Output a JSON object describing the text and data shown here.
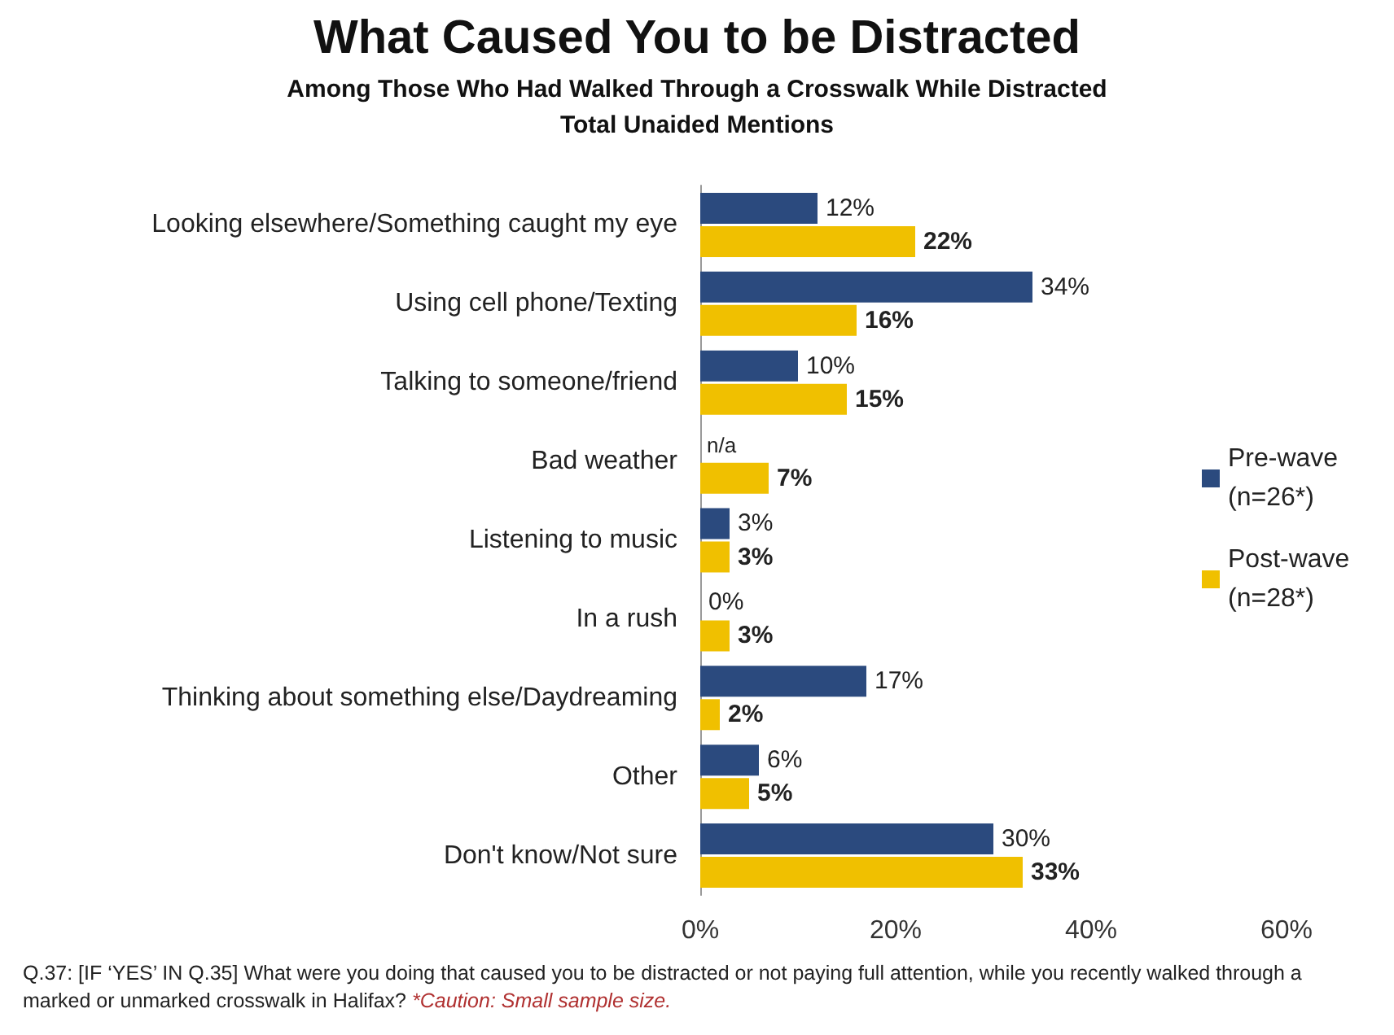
{
  "chart_data": {
    "type": "bar",
    "orientation": "horizontal",
    "title": "What Caused You to be Distracted",
    "subtitle": "Among Those Who Had Walked Through a Crosswalk While Distracted\nTotal Unaided Mentions",
    "categories": [
      "Looking elsewhere/Something caught my eye",
      "Using cell phone/Texting",
      "Talking to someone/friend",
      "Bad weather",
      "Listening to music",
      "In a rush",
      "Thinking about something else/Daydreaming",
      "Other",
      "Don't know/Not sure"
    ],
    "series": [
      {
        "name": "Pre-wave (n=26*)",
        "color": "#2b4a7e",
        "values": [
          12,
          34,
          10,
          null,
          3,
          0,
          17,
          6,
          30
        ],
        "value_labels": [
          "12%",
          "34%",
          "10%",
          "n/a",
          "3%",
          "0%",
          "17%",
          "6%",
          "30%"
        ]
      },
      {
        "name": "Post-wave (n=28*)",
        "color": "#f0c000",
        "values": [
          22,
          16,
          15,
          7,
          3,
          3,
          2,
          5,
          33
        ],
        "value_labels": [
          "22%",
          "16%",
          "15%",
          "7%",
          "3%",
          "3%",
          "2%",
          "5%",
          "33%"
        ]
      }
    ],
    "xlim": [
      0,
      60
    ],
    "xticks": [
      {
        "value": 0,
        "label": "0%"
      },
      {
        "value": 20,
        "label": "20%"
      },
      {
        "value": 40,
        "label": "40%"
      },
      {
        "value": 60,
        "label": "60%"
      }
    ],
    "grid": false,
    "legend": "right",
    "annotations": [
      "Q.37: [IF ‘YES’ IN Q.35] What were you doing that caused you to be distracted or not paying full attention, while you recently walked through a marked or unmarked crosswalk in Halifax?",
      "*Caution: Small sample size."
    ]
  }
}
